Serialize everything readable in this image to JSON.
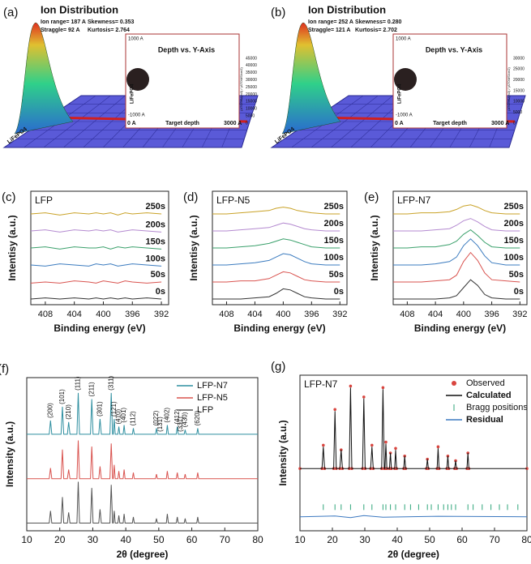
{
  "srim": [
    {
      "label": "(a)",
      "title": "Ion Distribution",
      "stats": [
        "Ion range= 187 A",
        "Skewness= 0.353",
        "Straggle= 92 A",
        "Kurtosis= 2.764"
      ],
      "inset_title": "Depth vs. Y-Axis",
      "inset_top": "1000 A",
      "inset_bottom": "-1000 A",
      "inset_axis": [
        "0 A",
        "Target depth",
        "3000 A"
      ],
      "inset_ylabel": "LiFePO4",
      "inset_axis_title": "(ATOMS/cm3) / (ATOMS/cm2)",
      "inset_yticks": [
        "45000",
        "40000",
        "35000",
        "30000",
        "25000",
        "20000",
        "15000",
        "10000",
        "5000",
        "0"
      ],
      "target": "LiFePO4"
    },
    {
      "label": "(b)",
      "title": "Ion Distribution",
      "stats": [
        "Ion range= 252 A",
        "Skewness= 0.280",
        "Straggle= 121 A",
        "Kurtosis= 2.702"
      ],
      "inset_title": "Depth vs. Y-Axis",
      "inset_top": "1000 A",
      "inset_bottom": "-1000 A",
      "inset_axis": [
        "0 A",
        "Target depth",
        "3000 A"
      ],
      "inset_ylabel": "LiFePO4",
      "inset_axis_title": "(ATOMS/cm3) / (ATOMS/cm2)",
      "inset_yticks": [
        "30000",
        "25000",
        "20000",
        "15000",
        "10000",
        "5000",
        "0"
      ],
      "target": "LiFePO4"
    }
  ],
  "chart_data": [
    {
      "type": "line",
      "panel_label": "(c)",
      "title": "LFP",
      "x_label": "Binding energy (eV)",
      "y_label": "Intentisy (a.u.)",
      "x": [
        410,
        408,
        406,
        404,
        402,
        401,
        400,
        399,
        398,
        397,
        396,
        394,
        392
      ],
      "xlim": [
        410,
        391
      ],
      "xticks": [
        408,
        404,
        400,
        396,
        392
      ],
      "ylim": [
        0,
        100
      ],
      "series_labels": "inline",
      "series": [
        {
          "name": "0s",
          "color": "#333333",
          "values": [
            5,
            6,
            5,
            6,
            5,
            6,
            5,
            6,
            5,
            6,
            5,
            6,
            5
          ]
        },
        {
          "name": "50s",
          "color": "#d9534f",
          "values": [
            19,
            20,
            19,
            21,
            20,
            19,
            21,
            20,
            19,
            21,
            20,
            19,
            20
          ]
        },
        {
          "name": "100s",
          "color": "#3b7bbf",
          "values": [
            35,
            34,
            36,
            35,
            34,
            36,
            35,
            36,
            34,
            35,
            36,
            35,
            34
          ]
        },
        {
          "name": "150s",
          "color": "#3aa06b",
          "values": [
            50,
            51,
            49,
            51,
            50,
            50,
            51,
            49,
            51,
            50,
            51,
            50,
            49
          ]
        },
        {
          "name": "200s",
          "color": "#b48ad0",
          "values": [
            65,
            66,
            64,
            66,
            65,
            66,
            65,
            66,
            64,
            65,
            66,
            65,
            64
          ]
        },
        {
          "name": "250s",
          "color": "#c9a227",
          "values": [
            80,
            81,
            79,
            81,
            80,
            81,
            80,
            81,
            79,
            81,
            80,
            81,
            80
          ]
        }
      ]
    },
    {
      "type": "line",
      "panel_label": "(d)",
      "title": "LFP-N5",
      "x_label": "Binding energy (eV)",
      "y_label": "Intentisy (a.u.)",
      "x": [
        410,
        408,
        406,
        404,
        402,
        401,
        400,
        399,
        398,
        397,
        396,
        394,
        392
      ],
      "xlim": [
        410,
        391
      ],
      "xticks": [
        408,
        404,
        400,
        396,
        392
      ],
      "ylim": [
        0,
        100
      ],
      "series_labels": "inline",
      "series": [
        {
          "name": "0s",
          "color": "#333333",
          "values": [
            5,
            5,
            5,
            6,
            7,
            10,
            14,
            13,
            10,
            7,
            6,
            5,
            5
          ]
        },
        {
          "name": "50s",
          "color": "#d9534f",
          "values": [
            20,
            20,
            21,
            21,
            23,
            26,
            29,
            28,
            25,
            22,
            21,
            20,
            20
          ]
        },
        {
          "name": "100s",
          "color": "#3b7bbf",
          "values": [
            35,
            35,
            36,
            37,
            39,
            42,
            45,
            44,
            41,
            38,
            36,
            35,
            35
          ]
        },
        {
          "name": "150s",
          "color": "#3aa06b",
          "values": [
            50,
            50,
            51,
            52,
            54,
            56,
            58,
            57,
            55,
            53,
            51,
            50,
            50
          ]
        },
        {
          "name": "200s",
          "color": "#b48ad0",
          "values": [
            65,
            65,
            66,
            67,
            68,
            70,
            72,
            71,
            69,
            67,
            66,
            65,
            65
          ]
        },
        {
          "name": "250s",
          "color": "#c9a227",
          "values": [
            80,
            80,
            81,
            82,
            83,
            85,
            86,
            85,
            83,
            82,
            81,
            80,
            80
          ]
        }
      ]
    },
    {
      "type": "line",
      "panel_label": "(e)",
      "title": "LFP-N7",
      "x_label": "Binding energy (eV)",
      "y_label": "Intentisy (a.u.)",
      "x": [
        410,
        408,
        406,
        404,
        402,
        401,
        400,
        399,
        398,
        397,
        396,
        394,
        392
      ],
      "xlim": [
        410,
        391
      ],
      "xticks": [
        408,
        404,
        400,
        396,
        392
      ],
      "ylim": [
        0,
        100
      ],
      "series_labels": "inline",
      "series": [
        {
          "name": "0s",
          "color": "#333333",
          "values": [
            5,
            5,
            5,
            5,
            6,
            8,
            15,
            22,
            17,
            9,
            6,
            5,
            5
          ]
        },
        {
          "name": "50s",
          "color": "#d9534f",
          "values": [
            20,
            20,
            20,
            21,
            22,
            26,
            38,
            46,
            39,
            28,
            22,
            21,
            20
          ]
        },
        {
          "name": "100s",
          "color": "#3b7bbf",
          "values": [
            35,
            35,
            35,
            36,
            38,
            42,
            52,
            58,
            52,
            43,
            37,
            35,
            35
          ]
        },
        {
          "name": "150s",
          "color": "#3aa06b",
          "values": [
            50,
            50,
            51,
            51,
            53,
            56,
            62,
            66,
            61,
            55,
            51,
            50,
            50
          ]
        },
        {
          "name": "200s",
          "color": "#b48ad0",
          "values": [
            65,
            65,
            65,
            66,
            67,
            70,
            74,
            76,
            73,
            69,
            66,
            65,
            65
          ]
        },
        {
          "name": "250s",
          "color": "#c9a227",
          "values": [
            80,
            80,
            81,
            81,
            82,
            84,
            87,
            88,
            86,
            83,
            81,
            80,
            80
          ]
        }
      ]
    },
    {
      "type": "line",
      "panel_label": "(f)",
      "x_label": "2θ (degree)",
      "y_label": "Intensity (a.u.)",
      "x": [
        10,
        16.8,
        17.2,
        17.6,
        20.4,
        20.8,
        21.2,
        22.3,
        22.7,
        23.1,
        25.2,
        25.6,
        26.0,
        29.3,
        29.7,
        30.1,
        31.8,
        32.2,
        32.6,
        35.2,
        35.6,
        36.0,
        36.2,
        36.5,
        36.8,
        37.6,
        37.9,
        38.2,
        39.2,
        39.5,
        39.8,
        42.0,
        42.3,
        42.6,
        49.0,
        49.3,
        49.6,
        52.3,
        52.6,
        52.9,
        55.3,
        55.6,
        55.9,
        57.7,
        58.0,
        58.3,
        61.5,
        61.8,
        62.1,
        80
      ],
      "xlim": [
        10,
        80
      ],
      "xticks": [
        10,
        20,
        30,
        40,
        50,
        60,
        70,
        80
      ],
      "ylim": [
        0,
        100
      ],
      "legend": "upper right",
      "series": [
        {
          "name": "LFP-N7",
          "color": "#2f8fa0",
          "values": [
            63,
            63,
            72,
            63,
            63,
            81,
            63,
            63,
            71,
            63,
            63,
            90,
            63,
            63,
            86,
            63,
            63,
            73,
            63,
            63,
            90,
            63,
            63,
            73,
            63,
            63,
            68,
            63,
            63,
            69,
            63,
            63,
            67,
            63,
            63,
            67,
            63,
            63,
            69,
            63,
            63,
            68,
            63,
            63,
            66,
            63,
            63,
            67,
            63,
            63
          ]
        },
        {
          "name": "LFP-N5",
          "color": "#d9534f",
          "values": [
            34,
            34,
            41,
            34,
            34,
            53,
            34,
            34,
            40,
            34,
            34,
            59,
            34,
            34,
            55,
            34,
            34,
            42,
            34,
            34,
            57,
            34,
            34,
            43,
            34,
            34,
            39,
            34,
            34,
            40,
            34,
            34,
            38,
            34,
            34,
            37,
            34,
            34,
            39,
            34,
            34,
            38,
            34,
            34,
            37,
            34,
            34,
            38,
            34,
            34
          ]
        },
        {
          "name": "LFP",
          "color": "#555555",
          "values": [
            5,
            5,
            13,
            5,
            5,
            22,
            5,
            5,
            12,
            5,
            5,
            32,
            5,
            5,
            28,
            5,
            5,
            14,
            5,
            5,
            30,
            5,
            5,
            13,
            5,
            5,
            10,
            5,
            5,
            11,
            5,
            5,
            9,
            5,
            5,
            8,
            5,
            5,
            11,
            5,
            5,
            9,
            5,
            5,
            8,
            5,
            5,
            9,
            5,
            5
          ]
        }
      ],
      "peak_labels": [
        {
          "label": "(200)",
          "x": 17.2
        },
        {
          "label": "(101)",
          "x": 20.8
        },
        {
          "label": "(210)",
          "x": 22.7
        },
        {
          "label": "(111)",
          "x": 25.6
        },
        {
          "label": "(211)",
          "x": 29.7
        },
        {
          "label": "(301)",
          "x": 32.2
        },
        {
          "label": "(311)",
          "x": 35.6
        },
        {
          "label": "(121)",
          "x": 36.5
        },
        {
          "label": "(410)",
          "x": 37.9
        },
        {
          "label": "(401)",
          "x": 39.5
        },
        {
          "label": "(112)",
          "x": 42.3
        },
        {
          "label": "(022)",
          "x": 49.3
        },
        {
          "label": "(131)",
          "x": 50.5
        },
        {
          "label": "(402)",
          "x": 52.6
        },
        {
          "label": "(412)",
          "x": 55.6
        },
        {
          "label": "(331)",
          "x": 56.7
        },
        {
          "label": "(430)",
          "x": 58.0
        },
        {
          "label": "(620)",
          "x": 61.8
        }
      ]
    },
    {
      "type": "line",
      "panel_label": "(g)",
      "title": "LFP-N7",
      "x_label": "2θ (degree)",
      "y_label": "Intensity (a.u.)",
      "xlim": [
        10,
        80
      ],
      "xticks": [
        10,
        20,
        30,
        40,
        50,
        60,
        70,
        80
      ],
      "ylim": [
        0,
        100
      ],
      "legend": "upper right",
      "series": [
        {
          "name": "Observed",
          "color": "#d9453f",
          "marker": "dot",
          "x": [
            10,
            16.8,
            17.2,
            17.6,
            20.4,
            20.8,
            21.2,
            22.3,
            22.7,
            23.1,
            25.2,
            25.6,
            26.0,
            29.3,
            29.7,
            30.1,
            31.8,
            32.2,
            32.6,
            35.2,
            35.6,
            36.0,
            36.2,
            36.5,
            36.8,
            37.6,
            37.9,
            38.2,
            39.2,
            39.5,
            39.8,
            42.0,
            42.3,
            42.6,
            49.0,
            49.3,
            49.6,
            52.3,
            52.6,
            52.9,
            55.3,
            55.6,
            55.9,
            57.7,
            58.0,
            58.3,
            61.5,
            61.8,
            62.1,
            80
          ],
          "values": [
            40,
            40,
            55,
            40,
            40,
            78,
            40,
            40,
            52,
            40,
            40,
            93,
            40,
            40,
            86,
            40,
            40,
            55,
            40,
            40,
            92,
            40,
            40,
            57,
            40,
            40,
            50,
            40,
            40,
            53,
            40,
            40,
            48,
            40,
            40,
            46,
            40,
            40,
            54,
            40,
            40,
            48,
            40,
            40,
            45,
            40,
            40,
            50,
            40,
            40
          ]
        },
        {
          "name": "Calculated",
          "color": "#111111",
          "x": [
            10,
            16.8,
            17.2,
            17.6,
            20.4,
            20.8,
            21.2,
            22.3,
            22.7,
            23.1,
            25.2,
            25.6,
            26.0,
            29.3,
            29.7,
            30.1,
            31.8,
            32.2,
            32.6,
            35.2,
            35.6,
            36.0,
            36.2,
            36.5,
            36.8,
            37.6,
            37.9,
            38.2,
            39.2,
            39.5,
            39.8,
            42.0,
            42.3,
            42.6,
            49.0,
            49.3,
            49.6,
            52.3,
            52.6,
            52.9,
            55.3,
            55.6,
            55.9,
            57.7,
            58.0,
            58.3,
            61.5,
            61.8,
            62.1,
            80
          ],
          "values": [
            40,
            40,
            54,
            40,
            40,
            77,
            40,
            40,
            52,
            40,
            40,
            92,
            40,
            40,
            85,
            40,
            40,
            54,
            40,
            40,
            91,
            40,
            40,
            56,
            40,
            40,
            50,
            40,
            40,
            52,
            40,
            40,
            48,
            40,
            40,
            46,
            40,
            40,
            53,
            40,
            40,
            48,
            40,
            40,
            45,
            40,
            40,
            50,
            40,
            40
          ]
        },
        {
          "name": "Bragg positions",
          "color": "#2fa67a",
          "marker": "tick",
          "x": [
            17.2,
            20.8,
            22.7,
            25.6,
            29.7,
            32.2,
            35.6,
            36.5,
            37.9,
            39.5,
            42.3,
            44.1,
            46.6,
            49.3,
            50.5,
            52.6,
            54.3,
            55.6,
            56.7,
            58.0,
            61.8,
            63.4,
            66.2,
            68.9,
            71.5,
            74.0,
            77.2
          ]
        },
        {
          "name": "Residual",
          "color": "#3b78c0",
          "x": [
            10,
            20.8,
            25.6,
            29.7,
            35.6,
            52.6,
            80
          ],
          "values": [
            9,
            9.5,
            8.5,
            9.8,
            8.7,
            9.3,
            9
          ]
        }
      ]
    }
  ]
}
